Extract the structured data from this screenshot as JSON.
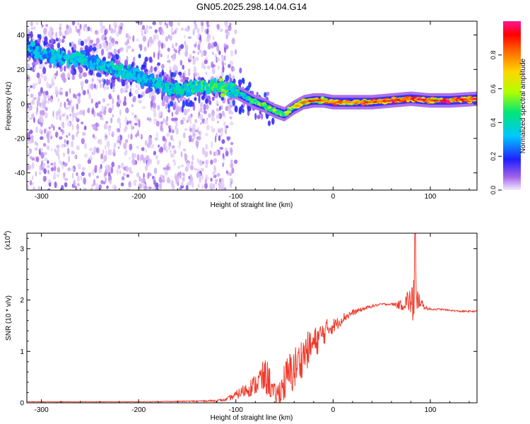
{
  "figure_title": "GN05.2025.298.14.04.G14",
  "chart_data": [
    {
      "type": "heatmap",
      "title": "GN05.2025.298.14.04.G14",
      "xlabel": "Height of straight line (km)",
      "ylabel": "Frequency (Hz)",
      "xlim": [
        -315,
        148
      ],
      "ylim": [
        -50,
        48
      ],
      "x_ticks": [
        -300,
        -200,
        -100,
        0,
        100
      ],
      "x_tick_labels": [
        "-300",
        "-200",
        "-100",
        "0",
        "100"
      ],
      "y_ticks": [
        -40,
        -20,
        0,
        20,
        40
      ],
      "y_tick_labels": [
        "-40",
        "-20",
        "0",
        "20",
        "40"
      ],
      "colorbar": {
        "label": "Normalized spectral amplitude",
        "range": [
          0,
          1
        ],
        "ticks": [
          0,
          0.2,
          0.4,
          0.6,
          0.8
        ],
        "tick_labels": [
          "0.0",
          "0.2",
          "0.4",
          "0.6",
          "0.8"
        ],
        "colormap": [
          "#f4ecfc",
          "#8a2be2",
          "#0000ff",
          "#00c8ff",
          "#00e676",
          "#b2ff00",
          "#ffd600",
          "#ff6a00",
          "#ff0000",
          "#ff1493"
        ]
      },
      "ridge": {
        "x": [
          -315,
          -300,
          -280,
          -260,
          -240,
          -220,
          -200,
          -180,
          -160,
          -140,
          -120,
          -110,
          -100,
          -90,
          -80,
          -70,
          -60,
          -50,
          -40,
          -30,
          -20,
          -10,
          0,
          20,
          40,
          60,
          80,
          100,
          120,
          148
        ],
        "frequency": [
          32,
          29,
          27,
          26,
          23,
          20,
          16,
          12,
          8,
          10,
          10,
          9,
          7,
          4,
          1,
          -1,
          -4,
          -6,
          -2,
          1,
          2,
          2,
          1,
          1,
          1,
          2,
          3,
          2,
          2,
          3
        ],
        "peak_amplitude": [
          0.35,
          0.4,
          0.4,
          0.42,
          0.4,
          0.42,
          0.4,
          0.42,
          0.45,
          0.5,
          0.55,
          0.58,
          0.45,
          0.48,
          0.55,
          0.6,
          0.65,
          0.6,
          0.7,
          0.8,
          0.85,
          0.85,
          0.9,
          0.85,
          0.9,
          0.95,
          0.9,
          0.95,
          0.95,
          0.9
        ]
      }
    },
    {
      "type": "line",
      "xlabel": "Height of straight line (km)",
      "ylabel": "SNR (10 * v/v)",
      "scale_label": "(x10",
      "scale_exponent": "4",
      "scale_suffix": ")",
      "xlim": [
        -315,
        148
      ],
      "ylim": [
        0,
        3.3
      ],
      "x_ticks": [
        -300,
        -200,
        -100,
        0,
        100
      ],
      "x_tick_labels": [
        "-300",
        "-200",
        "-100",
        "0",
        "100"
      ],
      "y_ticks": [
        0,
        1,
        2,
        3
      ],
      "y_tick_labels": [
        "0",
        "1",
        "2",
        "3"
      ],
      "series": [
        {
          "name": "SNR",
          "color": "#ef3b2c",
          "x": [
            -315,
            -250,
            -200,
            -150,
            -120,
            -110,
            -100,
            -90,
            -80,
            -75,
            -70,
            -66,
            -62,
            -58,
            -54,
            -50,
            -45,
            -40,
            -35,
            -30,
            -25,
            -20,
            -15,
            -10,
            -5,
            0,
            5,
            10,
            20,
            30,
            40,
            50,
            60,
            70,
            78,
            82,
            84,
            86,
            88,
            90,
            95,
            100,
            110,
            120,
            130,
            148
          ],
          "y": [
            0.02,
            0.02,
            0.02,
            0.03,
            0.04,
            0.06,
            0.15,
            0.25,
            0.35,
            0.45,
            0.5,
            0.45,
            0.2,
            0.15,
            0.25,
            0.4,
            0.55,
            0.65,
            0.8,
            0.95,
            1.05,
            1.15,
            1.25,
            1.35,
            1.45,
            1.5,
            1.55,
            1.65,
            1.75,
            1.82,
            1.88,
            1.92,
            1.92,
            1.9,
            2.0,
            1.9,
            2.5,
            1.8,
            2.05,
            1.95,
            1.85,
            1.82,
            1.82,
            1.8,
            1.78,
            1.78
          ],
          "amplitude": [
            0.005,
            0.005,
            0.005,
            0.01,
            0.02,
            0.03,
            0.08,
            0.15,
            0.2,
            0.3,
            0.35,
            0.35,
            0.2,
            0.2,
            0.3,
            0.4,
            0.45,
            0.45,
            0.4,
            0.4,
            0.35,
            0.3,
            0.3,
            0.25,
            0.2,
            0.15,
            0.12,
            0.1,
            0.06,
            0.04,
            0.03,
            0.02,
            0.02,
            0.1,
            0.25,
            0.4,
            0.9,
            0.45,
            0.2,
            0.1,
            0.04,
            0.02,
            0.015,
            0.015,
            0.015,
            0.015
          ]
        }
      ]
    }
  ]
}
